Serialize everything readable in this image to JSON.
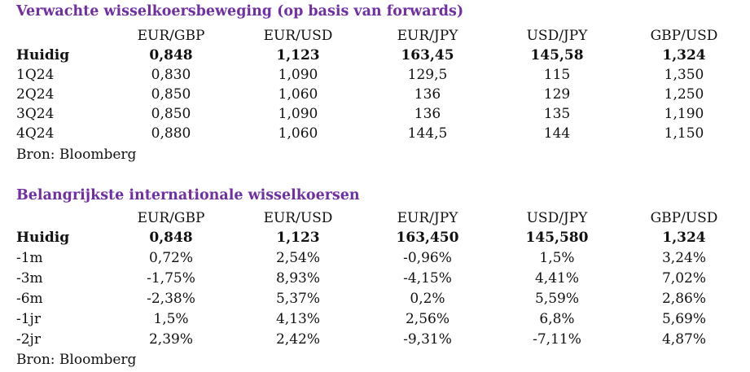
{
  "accent_color": "#7030a0",
  "forwards": {
    "title": "Verwachte wisselkoersbeweging (op basis van forwards)",
    "columns": [
      "EUR/GBP",
      "EUR/USD",
      "EUR/JPY",
      "USD/JPY",
      "GBP/USD"
    ],
    "rows": [
      {
        "label": "Huidig",
        "values": [
          "0,848",
          "1,123",
          "163,45",
          "145,58",
          "1,324"
        ]
      },
      {
        "label": "1Q24",
        "values": [
          "0,830",
          "1,090",
          "129,5",
          "115",
          "1,350"
        ]
      },
      {
        "label": "2Q24",
        "values": [
          "0,850",
          "1,060",
          "136",
          "129",
          "1,250"
        ]
      },
      {
        "label": "3Q24",
        "values": [
          "0,850",
          "1,090",
          "136",
          "135",
          "1,190"
        ]
      },
      {
        "label": "4Q24",
        "values": [
          "0,880",
          "1,060",
          "144,5",
          "144",
          "1,150"
        ]
      }
    ],
    "source": "Bron: Bloomberg"
  },
  "international": {
    "title": "Belangrijkste internationale wisselkoersen",
    "columns": [
      "EUR/GBP",
      "EUR/USD",
      "EUR/JPY",
      "USD/JPY",
      "GBP/USD"
    ],
    "rows": [
      {
        "label": "Huidig",
        "values": [
          "0,848",
          "1,123",
          "163,450",
          "145,580",
          "1,324"
        ]
      },
      {
        "label": "-1m",
        "values": [
          "0,72%",
          "2,54%",
          "-0,96%",
          "1,5%",
          "3,24%"
        ]
      },
      {
        "label": "-3m",
        "values": [
          "-1,75%",
          "8,93%",
          "-4,15%",
          "4,41%",
          "7,02%"
        ]
      },
      {
        "label": "-6m",
        "values": [
          "-2,38%",
          "5,37%",
          "0,2%",
          "5,59%",
          "2,86%"
        ]
      },
      {
        "label": "-1jr",
        "values": [
          "1,5%",
          "4,13%",
          "2,56%",
          "6,8%",
          "5,69%"
        ]
      },
      {
        "label": "-2jr",
        "values": [
          "2,39%",
          "2,42%",
          "-9,31%",
          "-7,11%",
          "4,87%"
        ]
      }
    ],
    "source": "Bron: Bloomberg"
  }
}
